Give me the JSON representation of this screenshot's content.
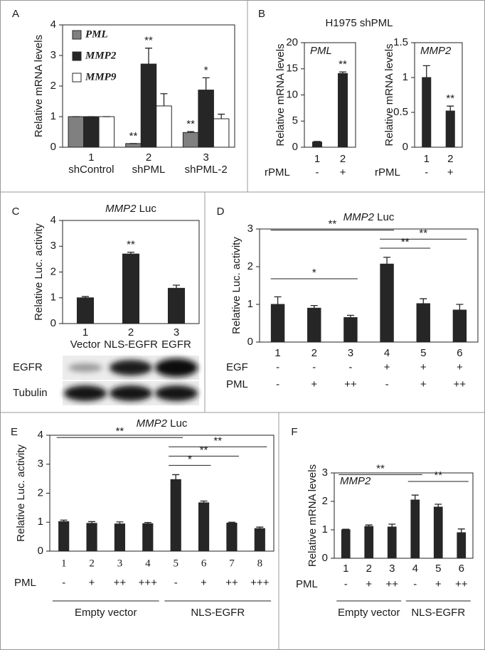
{
  "chart_data": [
    {
      "type": "bar",
      "panel": "A",
      "ylabel": "Relative mRNA levels",
      "categories": [
        "1",
        "2",
        "3"
      ],
      "group_labels": [
        "shControl",
        "shPML",
        "shPML-2"
      ],
      "series": [
        {
          "name": "PML",
          "color": "#808080",
          "values": [
            1,
            0.12,
            0.48
          ],
          "errors": [
            0,
            0,
            0.03
          ],
          "stars": [
            null,
            "**",
            "**"
          ]
        },
        {
          "name": "MMP2",
          "color": "#262626",
          "values": [
            1,
            2.72,
            1.87
          ],
          "errors": [
            0,
            0.52,
            0.4
          ],
          "stars": [
            null,
            "**",
            "*"
          ]
        },
        {
          "name": "MMP9",
          "color": "#ffffff",
          "values": [
            1,
            1.35,
            0.93
          ],
          "errors": [
            0,
            0.4,
            0.15
          ],
          "stars": [
            null,
            null,
            null
          ]
        }
      ],
      "ylim": [
        0,
        4
      ],
      "yticks": [
        0,
        1,
        2,
        3,
        4
      ]
    },
    {
      "type": "bar",
      "panel": "B",
      "title": "H1975 shPML",
      "inner_label": "PML",
      "ylabel": "Relative mRNA levels",
      "categories": [
        "1",
        "2"
      ],
      "series": [
        {
          "color": "#262626",
          "values": [
            1,
            14.1
          ],
          "errors": [
            0.1,
            0.3
          ],
          "stars": [
            null,
            "**"
          ]
        }
      ],
      "rows": [
        {
          "label": "rPML",
          "values": [
            "-",
            "+"
          ]
        }
      ],
      "ylim": [
        0,
        20
      ],
      "yticks": [
        0,
        5,
        10,
        15,
        20
      ]
    },
    {
      "type": "bar",
      "inner_label": "MMP2",
      "ylabel": "Relative mRNA levels",
      "categories": [
        "1",
        "2"
      ],
      "series": [
        {
          "color": "#262626",
          "values": [
            1,
            0.52
          ],
          "errors": [
            0.17,
            0.07
          ],
          "stars": [
            null,
            "**"
          ]
        }
      ],
      "rows": [
        {
          "label": "rPML",
          "values": [
            "-",
            "+"
          ]
        }
      ],
      "ylim": [
        0,
        1.5
      ],
      "yticks": [
        0,
        0.5,
        1,
        1.5
      ]
    },
    {
      "type": "bar",
      "panel": "C",
      "title_gene": "MMP2",
      "title": "Luc",
      "ylabel": "Relative Luc. activity",
      "categories": [
        "1",
        "2",
        "3"
      ],
      "group_labels": [
        "Vector",
        "NLS-EGFR",
        "EGFR"
      ],
      "series": [
        {
          "color": "#262626",
          "values": [
            1,
            2.7,
            1.37
          ],
          "errors": [
            0.05,
            0.07,
            0.12
          ],
          "stars": [
            null,
            "**",
            null
          ]
        }
      ],
      "blot_labels": [
        "EGFR",
        "Tubulin"
      ],
      "ylim": [
        0,
        4
      ],
      "yticks": [
        0,
        1,
        2,
        3,
        4
      ]
    },
    {
      "type": "bar",
      "panel": "D",
      "title_gene": "MMP2",
      "title": "Luc",
      "ylabel": "Relative Luc. activity",
      "categories": [
        "1",
        "2",
        "3",
        "4",
        "5",
        "6"
      ],
      "series": [
        {
          "color": "#262626",
          "values": [
            1.0,
            0.9,
            0.65,
            2.07,
            1.02,
            0.85
          ],
          "errors": [
            0.2,
            0.07,
            0.06,
            0.18,
            0.13,
            0.15
          ],
          "stars": [
            null,
            null,
            null,
            null,
            null,
            null
          ]
        }
      ],
      "rows": [
        {
          "label": "EGF",
          "values": [
            "-",
            "-",
            "-",
            "+",
            "+",
            "+"
          ]
        },
        {
          "label": "PML",
          "values": [
            "-",
            "+",
            "++",
            "-",
            "+",
            "++"
          ]
        }
      ],
      "comparisons": [
        {
          "label": "**",
          "between": [
            "1",
            "4"
          ]
        },
        {
          "label": "*",
          "between": [
            "1",
            "3"
          ]
        },
        {
          "label": "**",
          "between": [
            "4",
            "6"
          ]
        },
        {
          "label": "**",
          "between": [
            "4",
            "5"
          ]
        }
      ],
      "ylim": [
        0,
        3
      ],
      "yticks": [
        0,
        1,
        2,
        3
      ]
    },
    {
      "type": "bar",
      "panel": "E",
      "title_gene": "MMP2",
      "title": "Luc",
      "ylabel": "Relative Luc. activity",
      "categories": [
        "1",
        "2",
        "3",
        "4",
        "5",
        "6",
        "7",
        "8"
      ],
      "series": [
        {
          "color": "#262626",
          "values": [
            1.02,
            0.96,
            0.94,
            0.95,
            2.47,
            1.67,
            0.97,
            0.78
          ],
          "errors": [
            0.05,
            0.06,
            0.07,
            0.04,
            0.17,
            0.06,
            0.03,
            0.05
          ],
          "stars": [
            null,
            null,
            null,
            null,
            null,
            null,
            null,
            null
          ]
        }
      ],
      "rows": [
        {
          "label": "PML",
          "values": [
            "-",
            "+",
            "++",
            "+++",
            "-",
            "+",
            "++",
            "+++"
          ]
        }
      ],
      "groups": [
        {
          "label": "Empty vector",
          "between": [
            "1",
            "4"
          ]
        },
        {
          "label": "NLS-EGFR",
          "between": [
            "5",
            "8"
          ]
        }
      ],
      "comparisons": [
        {
          "label": "**",
          "between": [
            "1",
            "5"
          ]
        },
        {
          "label": "**",
          "between": [
            "5",
            "8"
          ]
        },
        {
          "label": "**",
          "between": [
            "5",
            "7"
          ]
        },
        {
          "label": "*",
          "between": [
            "5",
            "6"
          ]
        }
      ],
      "ylim": [
        0,
        4
      ],
      "yticks": [
        0,
        1,
        2,
        3,
        4
      ]
    },
    {
      "type": "bar",
      "panel": "F",
      "inner_label": "MMP2",
      "ylabel": "Relative mRNA levels",
      "categories": [
        "1",
        "2",
        "3",
        "4",
        "5",
        "6"
      ],
      "series": [
        {
          "color": "#262626",
          "values": [
            1.0,
            1.12,
            1.1,
            2.05,
            1.8,
            0.9
          ],
          "errors": [
            0.02,
            0.05,
            0.1,
            0.17,
            0.1,
            0.13
          ],
          "stars": [
            null,
            null,
            null,
            null,
            null,
            null
          ]
        }
      ],
      "rows": [
        {
          "label": "PML",
          "values": [
            "-",
            "+",
            "++",
            "-",
            "+",
            "++"
          ]
        }
      ],
      "groups": [
        {
          "label": "Empty vector",
          "between": [
            "1",
            "3"
          ]
        },
        {
          "label": "NLS-EGFR",
          "between": [
            "4",
            "6"
          ]
        }
      ],
      "comparisons": [
        {
          "label": "**",
          "between": [
            "1",
            "4"
          ]
        },
        {
          "label": "**",
          "between": [
            "4",
            "6"
          ]
        }
      ],
      "ylim": [
        0,
        3
      ],
      "yticks": [
        0,
        1,
        2,
        3
      ]
    }
  ]
}
